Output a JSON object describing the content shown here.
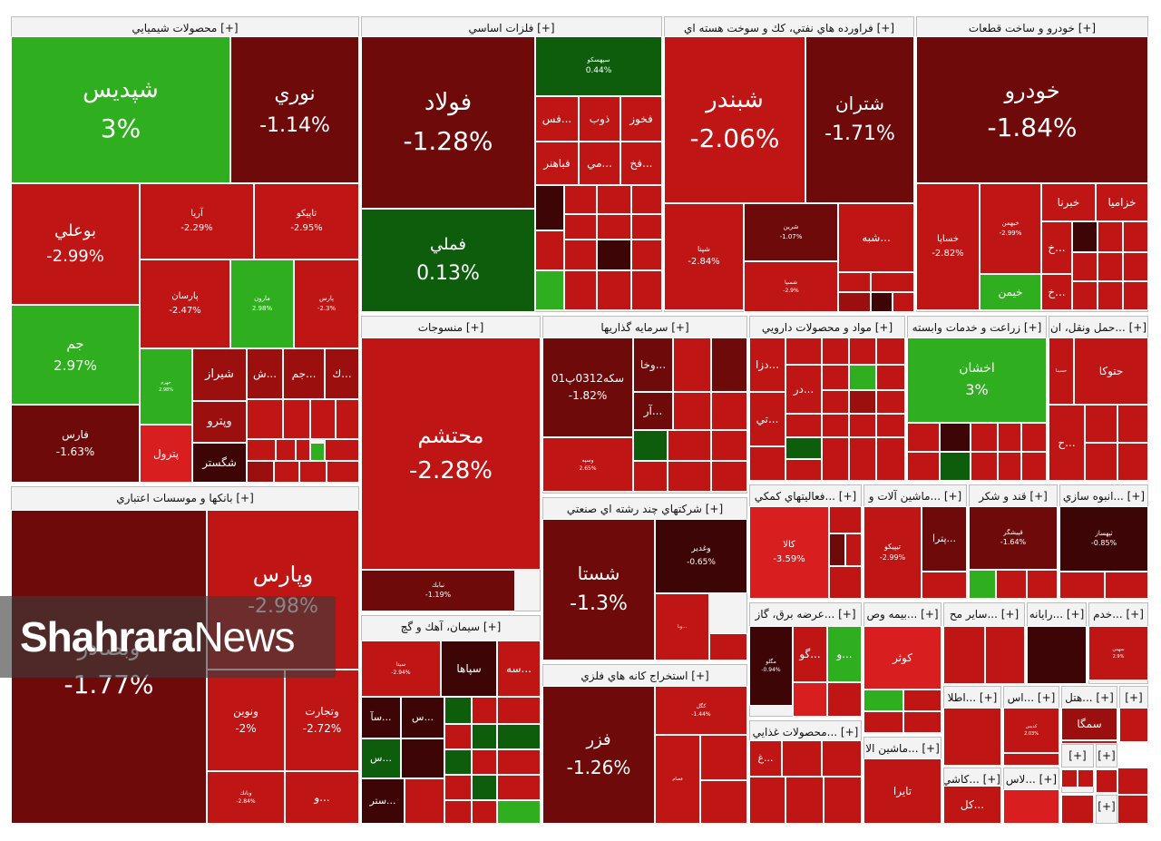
{
  "colors": {
    "strong_neg": "#6f0a0a",
    "mid_neg": "#9c0f0f",
    "weak_neg": "#c01515",
    "bright_neg": "#d81e1e",
    "dark": "#3d0505",
    "pos_bright": "#2fae1f",
    "pos_dark": "#0d5d0d",
    "header_bg": "#f3f3f3"
  },
  "watermark": {
    "bold": "Shahrara",
    "regular": "News"
  },
  "chart_data": {
    "type": "treemap",
    "unit": "%",
    "sectors": [
      {
        "name": "[+] محصولات شيميايي",
        "tiles": [
          {
            "name": "شپديس",
            "value": 3
          },
          {
            "name": "نوري",
            "value": -1.14
          },
          {
            "name": "بوعلي",
            "value": -2.99
          },
          {
            "name": "آريا",
            "value": -2.29
          },
          {
            "name": "تاپيكو",
            "value": -2.95
          },
          {
            "name": "جم",
            "value": 2.97
          },
          {
            "name": "پارسان",
            "value": -2.47
          },
          {
            "name": "مارون",
            "value": 2.98
          },
          {
            "name": "پارس",
            "value": -2.3
          },
          {
            "name": "فارس",
            "value": -1.63
          },
          {
            "name": "شيراز",
            "value": null
          },
          {
            "name": "وپترو",
            "value": null
          },
          {
            "name": "شگستر",
            "value": null
          },
          {
            "name": "پترول",
            "value": null
          },
          {
            "name": "جهرم",
            "value": 2.98
          },
          {
            "name": "...ش",
            "value": null
          },
          {
            "name": "...جم",
            "value": null
          },
          {
            "name": "...ك",
            "value": null
          }
        ]
      },
      {
        "name": "[+] فلزات اساسي",
        "tiles": [
          {
            "name": "فولاد",
            "value": -1.28
          },
          {
            "name": "فملي",
            "value": 0.13
          },
          {
            "name": "سپهسكو",
            "value": 0.44
          },
          {
            "name": "...فس",
            "value": null
          },
          {
            "name": "ذوب",
            "value": null
          },
          {
            "name": "فخوز",
            "value": null
          },
          {
            "name": "فباهنر",
            "value": null
          },
          {
            "name": "...مي",
            "value": null
          },
          {
            "name": "...فخ",
            "value": null
          }
        ]
      },
      {
        "name": "[+] فراورده هاي نفتي، كك و سوخت هسته اي",
        "tiles": [
          {
            "name": "شبندر",
            "value": -2.06
          },
          {
            "name": "شتران",
            "value": -1.71
          },
          {
            "name": "شپنا",
            "value": -2.84
          },
          {
            "name": "شرين",
            "value": -1.07
          },
          {
            "name": "...شبه",
            "value": null
          },
          {
            "name": "شسپا",
            "value": -2.9
          }
        ]
      },
      {
        "name": "[+] خودرو و ساخت قطعات",
        "tiles": [
          {
            "name": "خودرو",
            "value": -1.84
          },
          {
            "name": "خساپا",
            "value": -2.82
          },
          {
            "name": "خبهمن",
            "value": -2.99
          },
          {
            "name": "خبرنا",
            "value": null
          },
          {
            "name": "خزاميا",
            "value": null
          },
          {
            "name": "...خ",
            "value": null
          },
          {
            "name": "...خ",
            "value": null
          },
          {
            "name": "خيمن",
            "value": null
          }
        ]
      },
      {
        "name": "[+] بانكها و موسسات اعتباري",
        "tiles": [
          {
            "name": "وبصادر",
            "value": -1.77
          },
          {
            "name": "وپارس",
            "value": -2.98
          },
          {
            "name": "ونوين",
            "value": -2
          },
          {
            "name": "وتجارت",
            "value": -2.72
          },
          {
            "name": "وبانك",
            "value": -2.84
          },
          {
            "name": "...و",
            "value": null
          }
        ]
      },
      {
        "name": "[+] منسوجات",
        "tiles": [
          {
            "name": "محتشم",
            "value": -2.28
          },
          {
            "name": "نبابك",
            "value": -1.19
          }
        ]
      },
      {
        "name": "[+] سرمايه گذاريها",
        "tiles": [
          {
            "name": "سكه0312پ01",
            "value": -1.82
          },
          {
            "name": "...وخا",
            "value": null
          },
          {
            "name": "...آر",
            "value": null
          },
          {
            "name": "وسپه",
            "value": 2.65
          }
        ]
      },
      {
        "name": "[+] مواد و محصولات دارويي",
        "tiles": [
          {
            "name": "...دزا",
            "value": null
          },
          {
            "name": "...در",
            "value": null
          },
          {
            "name": "...تي",
            "value": null
          }
        ]
      },
      {
        "name": "[+] زراعت و خدمات وابسته",
        "tiles": [
          {
            "name": "اخشان",
            "value": 3
          }
        ]
      },
      {
        "name": "[+] ...حمل ونقل، ان",
        "tiles": [
          {
            "name": "حسينا",
            "value": null
          },
          {
            "name": "حتوكا",
            "value": null
          },
          {
            "name": "...ح",
            "value": null
          }
        ]
      },
      {
        "name": "[+] شركتهاي چند رشته اي صنعتي",
        "tiles": [
          {
            "name": "شستا",
            "value": -1.3
          },
          {
            "name": "وغدير",
            "value": -0.65
          },
          {
            "name": "...وبا",
            "value": null
          }
        ]
      },
      {
        "name": "[+] سيمان، آهك و گچ",
        "tiles": [
          {
            "name": "سيتا",
            "value": -2.94
          },
          {
            "name": "سپاها",
            "value": null
          },
          {
            "name": "...سه",
            "value": null
          },
          {
            "name": "...سآ",
            "value": null
          },
          {
            "name": "...س",
            "value": null
          },
          {
            "name": "...س",
            "value": null
          },
          {
            "name": "...ستر",
            "value": null
          }
        ]
      },
      {
        "name": "[+] استخراج كانه هاي فلزي",
        "tiles": [
          {
            "name": "فزر",
            "value": -1.26
          },
          {
            "name": "كگل",
            "value": -1.44
          },
          {
            "name": "فصام",
            "value": null
          }
        ]
      },
      {
        "name": "[+] ...فعاليتهاي كمكي",
        "tiles": [
          {
            "name": "كالا",
            "value": -3.59
          }
        ]
      },
      {
        "name": "[+] ...ماشين آلات و",
        "tiles": [
          {
            "name": "تيپيكو",
            "value": -2.99
          },
          {
            "name": "...پترا",
            "value": null
          }
        ]
      },
      {
        "name": "[+] قند و شكر",
        "tiles": [
          {
            "name": "قپيشگر",
            "value": -1.64
          }
        ]
      },
      {
        "name": "[+] ...انبوه سازي",
        "tiles": [
          {
            "name": "ثپهساز",
            "value": -0.85
          }
        ]
      },
      {
        "name": "[+] ...عرضه برق، گاز",
        "tiles": [
          {
            "name": "مگلو",
            "value": -0.94
          },
          {
            "name": "...گو",
            "value": null
          },
          {
            "name": "...و",
            "value": null
          }
        ]
      },
      {
        "name": "[+] ...بيمه وص",
        "tiles": [
          {
            "name": "كوثر",
            "value": null
          }
        ]
      },
      {
        "name": "[+] ...ساير مح",
        "tiles": []
      },
      {
        "name": "[+] ...رايانه",
        "tiles": []
      },
      {
        "name": "[+] ...خدم",
        "tiles": [
          {
            "name": "سهمن",
            "value": 2.9
          }
        ]
      },
      {
        "name": "[+] ...محصولات غذايي",
        "tiles": [
          {
            "name": "...غ",
            "value": null
          }
        ]
      },
      {
        "name": "[+] ...ماشين الا",
        "tiles": [
          {
            "name": "تايرا",
            "value": null
          }
        ]
      },
      {
        "name": "[+] ...اطلا",
        "tiles": []
      },
      {
        "name": "[+] ...اس",
        "tiles": [
          {
            "name": "كديس",
            "value": 2.03
          }
        ]
      },
      {
        "name": "[+] ...هتل",
        "tiles": [
          {
            "name": "سمگا",
            "value": null
          }
        ]
      },
      {
        "name": "[+] ...كاشي",
        "tiles": [
          {
            "name": "...كل",
            "value": null
          }
        ]
      },
      {
        "name": "[+] ...لاس",
        "tiles": []
      },
      {
        "name": "[+]",
        "tiles": []
      },
      {
        "name": "[+]",
        "tiles": []
      },
      {
        "name": "[+]",
        "tiles": []
      },
      {
        "name": "[+]",
        "tiles": []
      },
      {
        "name": "[+]",
        "tiles": []
      },
      {
        "name": "[+]",
        "tiles": []
      }
    ]
  }
}
